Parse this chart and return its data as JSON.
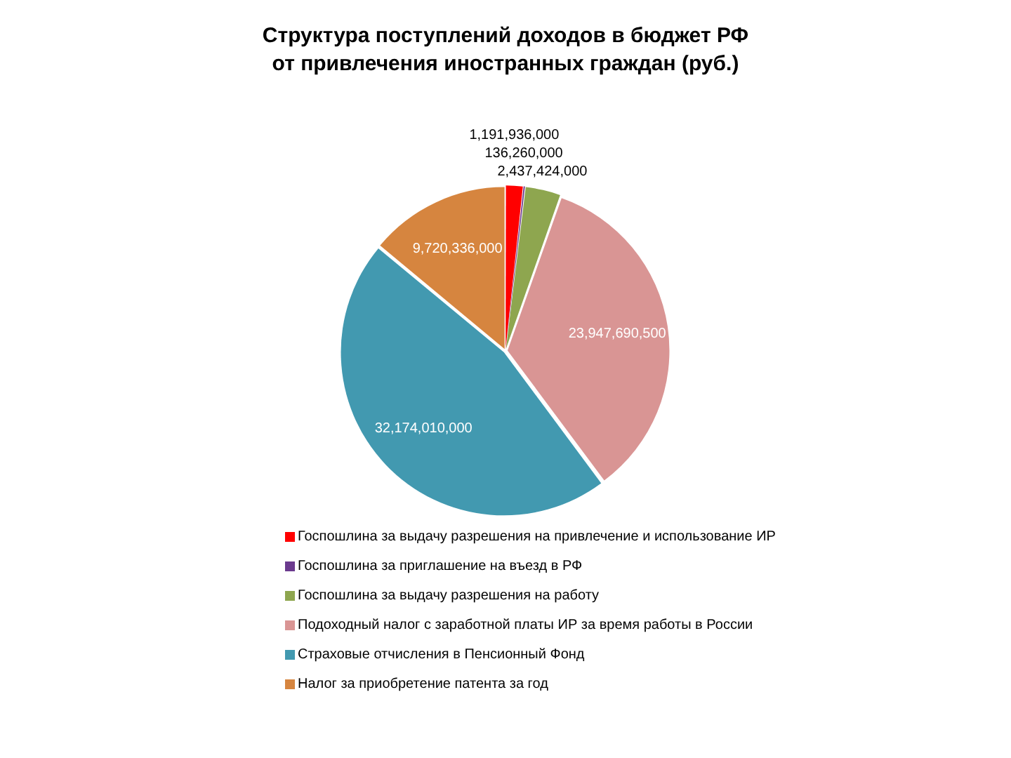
{
  "chart_data": {
    "type": "pie",
    "title": "Структура поступлений доходов в бюджет РФ от привлечения иностранных граждан (руб.)",
    "categories": [
      "Госпошлина за выдачу разрешения на привлечение и использование ИР",
      "Госпошлина за приглашение на въезд в РФ",
      "Госпошлина за выдачу разрешения на работу",
      "Подоходный налог с заработной платы ИР за время работы в России",
      "Страховые отчисления в Пенсионный Фонд",
      "Налог за приобретение патента за год"
    ],
    "values": [
      1191936000,
      136260000,
      2437424000,
      23947690500,
      32174010000,
      9720336000
    ],
    "value_labels": [
      "1,191,936,000",
      "136,260,000",
      "2,437,424,000",
      "23,947,690,500",
      "32,174,010,000",
      "9,720,336,000"
    ],
    "colors": [
      "#ff0000",
      "#6b3a8e",
      "#8ea64f",
      "#d99594",
      "#4299b0",
      "#d6853f"
    ],
    "legend": "bottom"
  }
}
